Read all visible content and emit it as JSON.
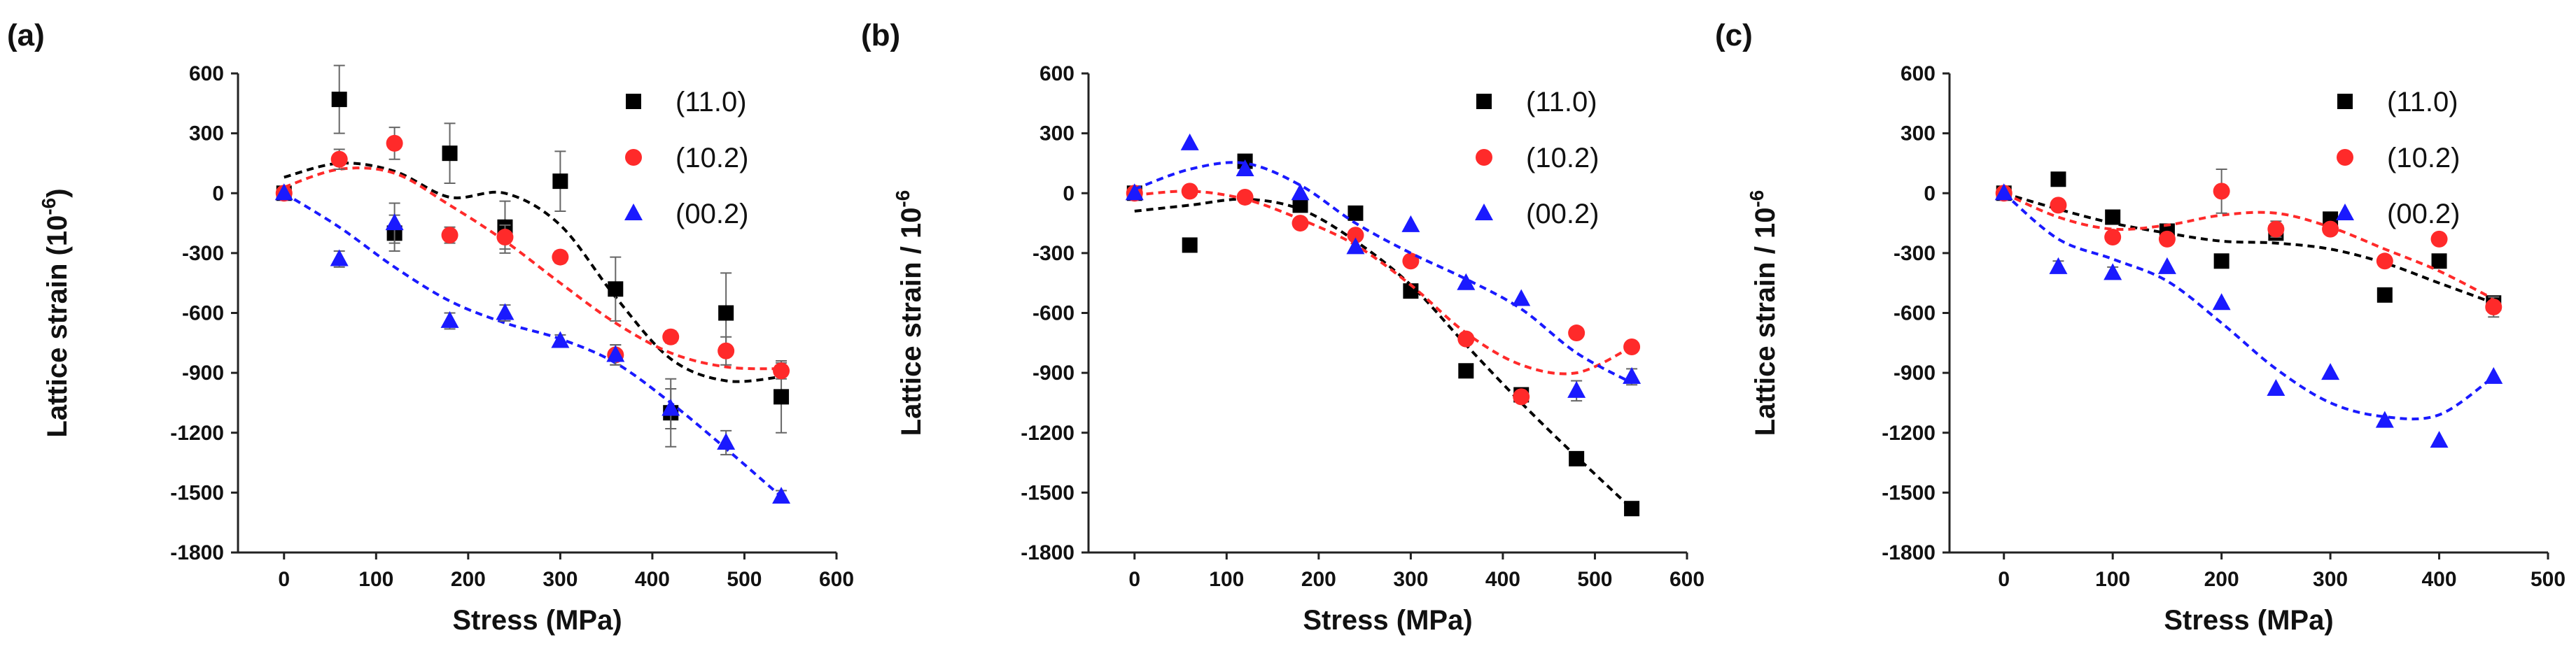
{
  "chart_data": [
    {
      "type": "scatter",
      "panel_label": "(a)",
      "title": "",
      "xlabel": "Stress  (MPa)",
      "ylabel": "Lattice strain  (10",
      "ylabel_sup": "-6",
      "ylabel_suffix": ")",
      "xlim": [
        -50,
        600
      ],
      "ylim": [
        -1800,
        600
      ],
      "xticks": [
        0,
        100,
        200,
        300,
        400,
        500,
        600
      ],
      "yticks": [
        600,
        300,
        0,
        -300,
        -600,
        -900,
        -1200,
        -1500,
        -1800
      ],
      "legend_position": "top-right",
      "series": [
        {
          "name": "(11.0)",
          "color": "#000000",
          "marker": "square",
          "x": [
            0,
            60,
            120,
            180,
            240,
            300,
            360,
            420,
            480,
            540
          ],
          "y": [
            0,
            470,
            -200,
            200,
            -170,
            60,
            -480,
            -1100,
            -600,
            -1020
          ],
          "err": [
            0,
            170,
            90,
            150,
            130,
            150,
            160,
            170,
            200,
            180
          ],
          "fit_x": [
            0,
            60,
            120,
            180,
            240,
            300,
            360,
            420,
            480,
            540
          ],
          "fit_y": [
            80,
            150,
            110,
            -20,
            0,
            -160,
            -520,
            -830,
            -940,
            -920
          ]
        },
        {
          "name": "(10.2)",
          "color": "#ff2a2a",
          "marker": "circle",
          "x": [
            0,
            60,
            120,
            180,
            240,
            300,
            360,
            420,
            480,
            540
          ],
          "y": [
            0,
            170,
            250,
            -210,
            -220,
            -320,
            -810,
            -720,
            -790,
            -890
          ],
          "err": [
            0,
            50,
            80,
            40,
            60,
            30,
            50,
            30,
            70,
            40
          ],
          "fit_x": [
            0,
            60,
            120,
            180,
            240,
            300,
            360,
            420,
            480,
            540
          ],
          "fit_y": [
            30,
            120,
            100,
            -60,
            -240,
            -450,
            -650,
            -800,
            -870,
            -880
          ]
        },
        {
          "name": "(00.2)",
          "color": "#1a1aff",
          "marker": "triangle",
          "x": [
            0,
            60,
            120,
            180,
            240,
            300,
            360,
            420,
            480,
            540
          ],
          "y": [
            0,
            -330,
            -150,
            -640,
            -600,
            -740,
            -810,
            -1080,
            -1250,
            -1520
          ],
          "err": [
            0,
            40,
            100,
            40,
            40,
            30,
            50,
            100,
            60,
            30
          ],
          "fit_x": [
            0,
            60,
            120,
            180,
            240,
            300,
            360,
            420,
            480,
            540
          ],
          "fit_y": [
            0,
            -170,
            -370,
            -540,
            -650,
            -730,
            -850,
            -1050,
            -1280,
            -1520
          ]
        }
      ]
    },
    {
      "type": "scatter",
      "panel_label": "(b)",
      "title": "",
      "xlabel": "Stress  (MPa)",
      "ylabel": "Lattice strain / 10",
      "ylabel_sup": "-6",
      "ylabel_suffix": "",
      "xlim": [
        -50,
        600
      ],
      "ylim": [
        -1800,
        600
      ],
      "xticks": [
        0,
        100,
        200,
        300,
        400,
        500,
        600
      ],
      "yticks": [
        600,
        300,
        0,
        -300,
        -600,
        -900,
        -1200,
        -1500,
        -1800
      ],
      "legend_position": "top-right",
      "series": [
        {
          "name": "(11.0)",
          "color": "#000000",
          "marker": "square",
          "x": [
            0,
            60,
            120,
            180,
            240,
            300,
            360,
            420,
            480,
            540
          ],
          "y": [
            0,
            -260,
            160,
            -60,
            -100,
            -490,
            -890,
            -1010,
            -1330,
            -1580
          ],
          "err": [
            0,
            0,
            0,
            0,
            0,
            0,
            0,
            0,
            0,
            0
          ],
          "fit_x": [
            0,
            60,
            120,
            180,
            240,
            300,
            360,
            420,
            480,
            540
          ],
          "fit_y": [
            -90,
            -60,
            -30,
            -80,
            -240,
            -460,
            -760,
            -1050,
            -1320,
            -1580
          ]
        },
        {
          "name": "(10.2)",
          "color": "#ff2a2a",
          "marker": "circle",
          "x": [
            0,
            60,
            120,
            180,
            240,
            300,
            360,
            420,
            480,
            540
          ],
          "y": [
            0,
            10,
            -20,
            -150,
            -210,
            -340,
            -730,
            -1020,
            -700,
            -770
          ],
          "err": [
            0,
            0,
            0,
            0,
            0,
            0,
            0,
            0,
            0,
            0
          ],
          "fit_x": [
            0,
            60,
            120,
            180,
            240,
            300,
            360,
            420,
            480,
            540
          ],
          "fit_y": [
            -10,
            10,
            -30,
            -130,
            -260,
            -460,
            -700,
            -860,
            -900,
            -770
          ]
        },
        {
          "name": "(00.2)",
          "color": "#1a1aff",
          "marker": "triangle",
          "x": [
            0,
            60,
            120,
            180,
            240,
            300,
            360,
            420,
            480,
            540
          ],
          "y": [
            0,
            250,
            120,
            0,
            -270,
            -160,
            -450,
            -530,
            -990,
            -920
          ],
          "err": [
            0,
            0,
            0,
            0,
            0,
            0,
            0,
            0,
            50,
            40
          ],
          "fit_x": [
            0,
            60,
            120,
            180,
            240,
            300,
            360,
            420,
            480,
            540
          ],
          "fit_y": [
            20,
            120,
            150,
            40,
            -150,
            -300,
            -430,
            -580,
            -800,
            -950
          ]
        }
      ]
    },
    {
      "type": "scatter",
      "panel_label": "(c)",
      "title": "",
      "xlabel": "Stress  (MPa)",
      "ylabel": "Lattice strain / 10",
      "ylabel_sup": "-6",
      "ylabel_suffix": "",
      "xlim": [
        -50,
        500
      ],
      "ylim": [
        -1800,
        600
      ],
      "xticks": [
        0,
        100,
        200,
        300,
        400,
        500
      ],
      "yticks": [
        600,
        300,
        0,
        -300,
        -600,
        -900,
        -1200,
        -1500,
        -1800
      ],
      "legend_position": "top-right",
      "series": [
        {
          "name": "(11.0)",
          "color": "#000000",
          "marker": "square",
          "x": [
            0,
            50,
            100,
            150,
            200,
            250,
            300,
            350,
            400,
            450
          ],
          "y": [
            0,
            70,
            -120,
            -190,
            -340,
            -200,
            -130,
            -510,
            -340,
            -550
          ],
          "err": [
            0,
            0,
            30,
            30,
            0,
            0,
            0,
            0,
            0,
            0
          ],
          "fit_x": [
            0,
            50,
            100,
            150,
            200,
            250,
            300,
            350,
            400,
            450
          ],
          "fit_y": [
            0,
            -80,
            -150,
            -200,
            -240,
            -250,
            -280,
            -350,
            -450,
            -550
          ]
        },
        {
          "name": "(10.2)",
          "color": "#ff2a2a",
          "marker": "circle",
          "x": [
            0,
            50,
            100,
            150,
            200,
            250,
            300,
            350,
            400,
            450
          ],
          "y": [
            0,
            -60,
            -220,
            -230,
            10,
            -180,
            -180,
            -340,
            -230,
            -570
          ],
          "err": [
            0,
            0,
            0,
            0,
            110,
            40,
            0,
            0,
            0,
            50
          ],
          "fit_x": [
            0,
            50,
            100,
            150,
            200,
            250,
            300,
            350,
            400,
            450
          ],
          "fit_y": [
            0,
            -120,
            -180,
            -160,
            -110,
            -100,
            -170,
            -280,
            -390,
            -530
          ]
        },
        {
          "name": "(00.2)",
          "color": "#1a1aff",
          "marker": "triangle",
          "x": [
            0,
            50,
            100,
            150,
            200,
            250,
            300,
            350,
            400,
            450
          ],
          "y": [
            0,
            -370,
            -400,
            -370,
            -550,
            -980,
            -900,
            -1140,
            -1240,
            -920
          ],
          "err": [
            0,
            30,
            30,
            0,
            0,
            0,
            0,
            0,
            0,
            0
          ],
          "fit_x": [
            0,
            50,
            100,
            150,
            200,
            250,
            300,
            350,
            400,
            450
          ],
          "fit_y": [
            0,
            -230,
            -330,
            -440,
            -650,
            -880,
            -1050,
            -1120,
            -1110,
            -920
          ]
        }
      ]
    }
  ]
}
